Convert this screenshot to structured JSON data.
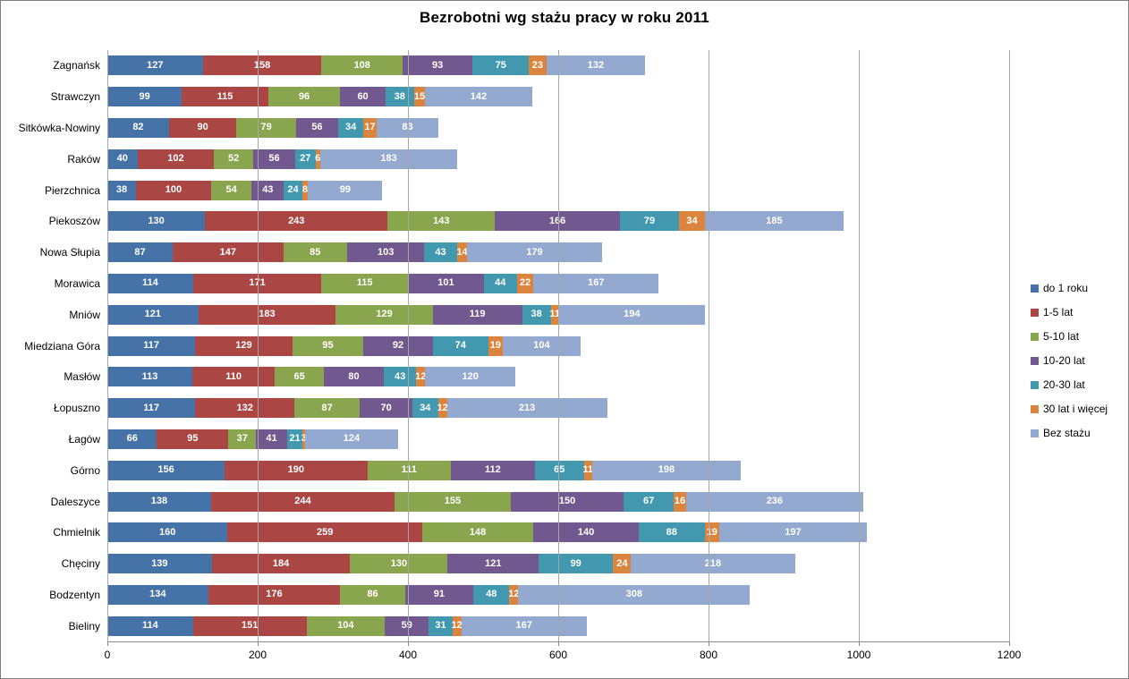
{
  "chart_data": {
    "type": "bar",
    "orientation": "horizontal",
    "stacked": true,
    "title": "Bezrobotni wg stażu pracy w roku 2011",
    "categories": [
      "Zagnańsk",
      "Strawczyn",
      "Sitkówka-Nowiny",
      "Raków",
      "Pierzchnica",
      "Piekoszów",
      "Nowa Słupia",
      "Morawica",
      "Mniów",
      "Miedziana Góra",
      "Masłów",
      "Łopuszno",
      "Łagów",
      "Górno",
      "Daleszyce",
      "Chmielnik",
      "Chęciny",
      "Bodzentyn",
      "Bieliny"
    ],
    "series": [
      {
        "name": "do 1 roku",
        "color": "#4572A7",
        "values": [
          127,
          99,
          82,
          40,
          38,
          130,
          87,
          114,
          121,
          117,
          113,
          117,
          66,
          156,
          138,
          160,
          139,
          134,
          114
        ]
      },
      {
        "name": "1-5 lat",
        "color": "#AA4643",
        "values": [
          158,
          115,
          90,
          102,
          100,
          243,
          147,
          171,
          183,
          129,
          110,
          132,
          95,
          190,
          244,
          259,
          184,
          176,
          151
        ]
      },
      {
        "name": "5-10 lat",
        "color": "#89A54E",
        "values": [
          108,
          96,
          79,
          52,
          54,
          143,
          85,
          115,
          129,
          95,
          65,
          87,
          37,
          111,
          155,
          148,
          130,
          86,
          104
        ]
      },
      {
        "name": "10-20 lat",
        "color": "#71588F",
        "values": [
          93,
          60,
          56,
          56,
          43,
          166,
          103,
          101,
          119,
          92,
          80,
          70,
          41,
          112,
          150,
          140,
          121,
          91,
          59
        ]
      },
      {
        "name": "20-30 lat",
        "color": "#4198AF",
        "values": [
          75,
          38,
          34,
          27,
          24,
          79,
          43,
          44,
          38,
          74,
          43,
          34,
          21,
          65,
          67,
          88,
          99,
          48,
          31
        ]
      },
      {
        "name": "30 lat i więcej",
        "color": "#DB843D",
        "values": [
          23,
          15,
          17,
          6,
          8,
          34,
          14,
          22,
          11,
          19,
          12,
          12,
          3,
          11,
          16,
          19,
          24,
          12,
          12
        ]
      },
      {
        "name": "Bez stażu",
        "color": "#93A9CF",
        "values": [
          132,
          142,
          83,
          183,
          99,
          185,
          179,
          167,
          194,
          104,
          120,
          213,
          124,
          198,
          236,
          197,
          218,
          308,
          167
        ]
      }
    ],
    "x_axis": {
      "min": 0,
      "max": 1200,
      "tick_interval": 200,
      "tick_labels": [
        "0",
        "200",
        "400",
        "600",
        "800",
        "1000",
        "1200"
      ]
    },
    "legend_position": "right",
    "grid": true,
    "data_labels": "white-bold-inside-segments"
  }
}
